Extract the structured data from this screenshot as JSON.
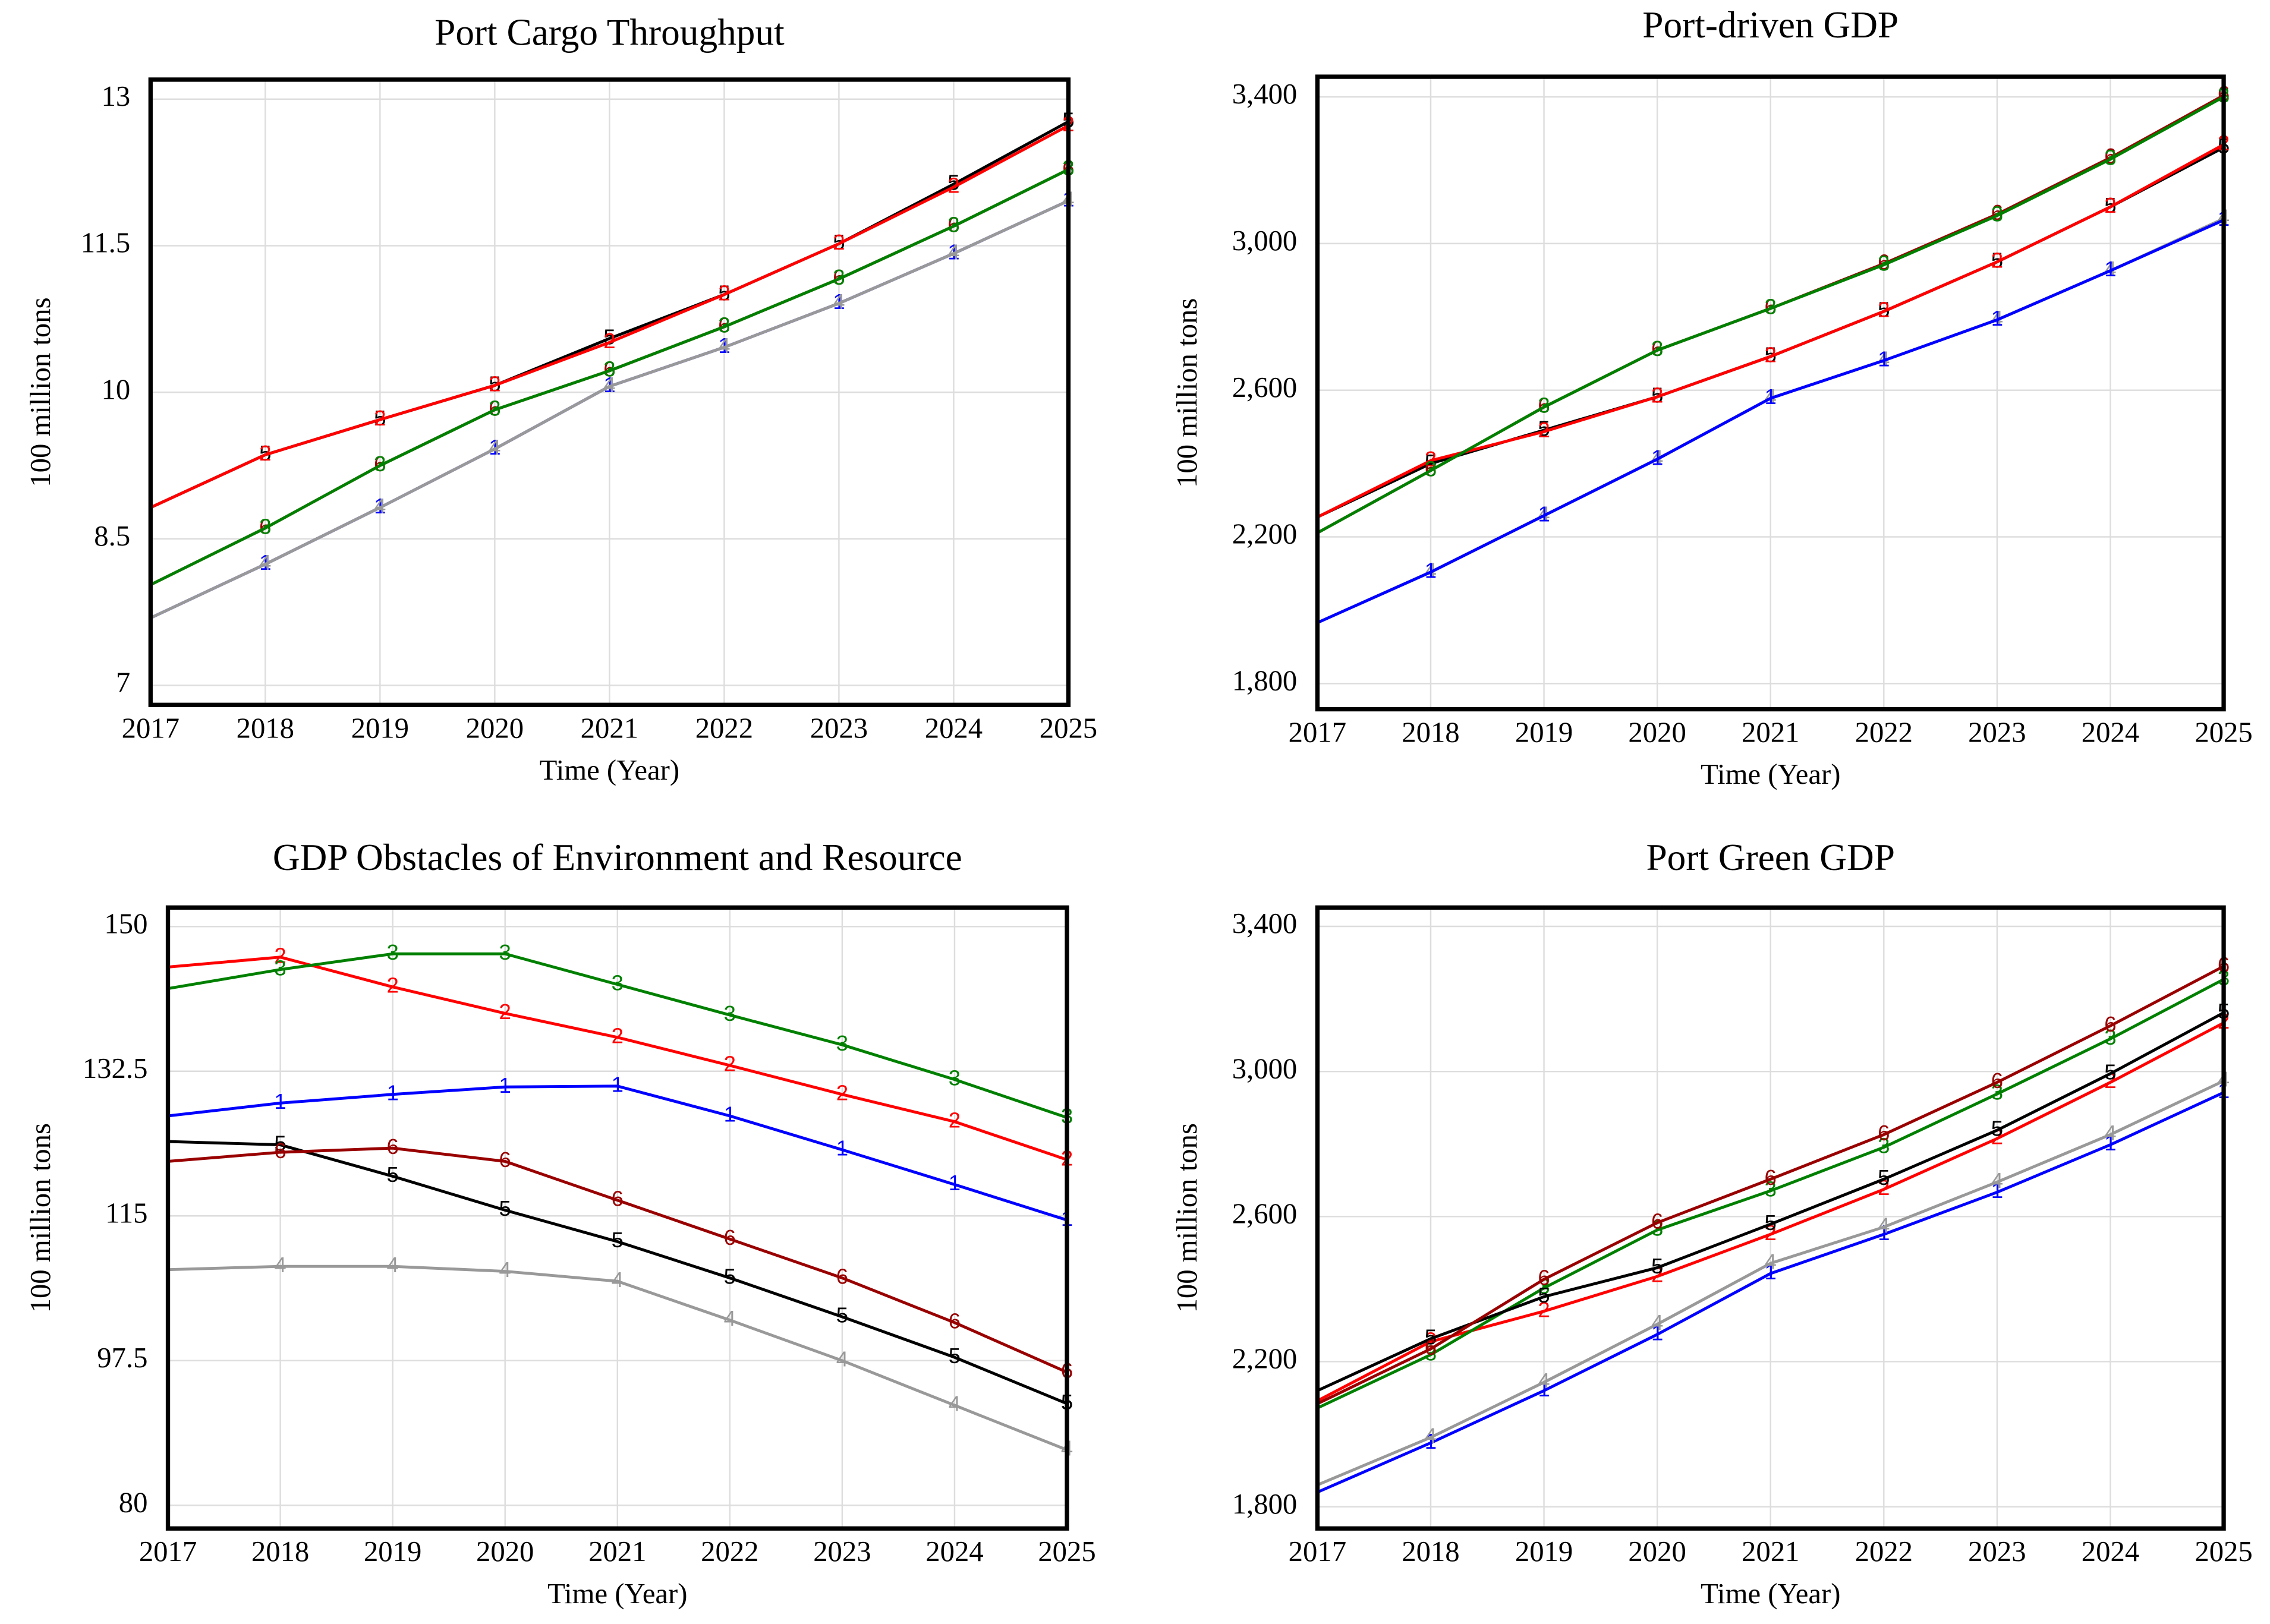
{
  "chart_data": [
    {
      "type": "line",
      "title": "Port Cargo Throughput",
      "xlabel": "Time (Year)",
      "ylabel": "100 million tons",
      "x": [
        2017,
        2018,
        2019,
        2020,
        2021,
        2022,
        2023,
        2024,
        2025
      ],
      "xlim": [
        2017,
        2025
      ],
      "xticks": [
        2017,
        2018,
        2019,
        2020,
        2021,
        2022,
        2023,
        2024,
        2025
      ],
      "ylim": [
        6.8,
        13.2
      ],
      "yticks": [
        7,
        8.5,
        10,
        11.5,
        13
      ],
      "grid": true,
      "series": [
        {
          "name": "1",
          "color": "#0000ff",
          "values": [
            7.69,
            8.24,
            8.82,
            9.42,
            10.06,
            10.46,
            10.91,
            11.42,
            11.96
          ]
        },
        {
          "name": "4",
          "color": "#999999",
          "values": [
            7.69,
            8.24,
            8.82,
            9.42,
            10.06,
            10.46,
            10.91,
            11.42,
            11.96
          ]
        },
        {
          "name": "6",
          "color": "#990000",
          "values": [
            8.03,
            8.61,
            9.25,
            9.82,
            10.22,
            10.67,
            11.16,
            11.7,
            12.28
          ]
        },
        {
          "name": "3",
          "color": "#008000",
          "values": [
            8.03,
            8.61,
            9.25,
            9.82,
            10.22,
            10.67,
            11.16,
            11.7,
            12.28
          ]
        },
        {
          "name": "5",
          "color": "#000000",
          "values": [
            8.82,
            9.36,
            9.72,
            10.07,
            10.55,
            11.0,
            11.52,
            12.13,
            12.77
          ]
        },
        {
          "name": "2",
          "color": "#ff0000",
          "values": [
            8.82,
            9.36,
            9.72,
            10.07,
            10.51,
            11.0,
            11.52,
            12.1,
            12.73
          ]
        }
      ]
    },
    {
      "type": "line",
      "title": "Port-driven GDP",
      "xlabel": "Time (Year)",
      "ylabel": "100 million tons",
      "x": [
        2017,
        2018,
        2019,
        2020,
        2021,
        2022,
        2023,
        2024,
        2025
      ],
      "xlim": [
        2017,
        2025
      ],
      "xticks": [
        2017,
        2018,
        2019,
        2020,
        2021,
        2022,
        2023,
        2024,
        2025
      ],
      "ylim": [
        1730,
        3455
      ],
      "yticks": [
        {
          "value": 1800,
          "label": "1,800"
        },
        {
          "value": 2200,
          "label": "2,200"
        },
        {
          "value": 2600,
          "label": "2,600"
        },
        {
          "value": 3000,
          "label": "3,000"
        },
        {
          "value": 3400,
          "label": "3,400"
        }
      ],
      "grid": true,
      "series": [
        {
          "name": "4",
          "color": "#999999",
          "values": [
            1966,
            2104,
            2258,
            2412,
            2578,
            2681,
            2792,
            2926,
            3068
          ]
        },
        {
          "name": "1",
          "color": "#0000ff",
          "values": [
            1966,
            2104,
            2258,
            2412,
            2578,
            2681,
            2792,
            2926,
            3064
          ]
        },
        {
          "name": "5",
          "color": "#000000",
          "values": [
            2254,
            2400,
            2491,
            2582,
            2692,
            2815,
            2950,
            3100,
            3262
          ]
        },
        {
          "name": "2",
          "color": "#ff0000",
          "values": [
            2254,
            2408,
            2487,
            2582,
            2692,
            2815,
            2950,
            3100,
            3270
          ]
        },
        {
          "name": "6",
          "color": "#990000",
          "values": [
            2211,
            2381,
            2554,
            2709,
            2823,
            2945,
            3080,
            3234,
            3404
          ]
        },
        {
          "name": "3",
          "color": "#008000",
          "values": [
            2211,
            2381,
            2554,
            2709,
            2823,
            2942,
            3076,
            3230,
            3400
          ]
        }
      ]
    },
    {
      "type": "line",
      "title": "GDP Obstacles of Environment and Resource",
      "xlabel": "Time (Year)",
      "ylabel": "100 million tons",
      "x": [
        2017,
        2018,
        2019,
        2020,
        2021,
        2022,
        2023,
        2024,
        2025
      ],
      "xlim": [
        2017,
        2025
      ],
      "xticks": [
        2017,
        2018,
        2019,
        2020,
        2021,
        2022,
        2023,
        2024,
        2025
      ],
      "ylim": [
        77.2,
        152.3
      ],
      "yticks": [
        80,
        97.5,
        115,
        132.5,
        150
      ],
      "grid": true,
      "series": [
        {
          "name": "1",
          "color": "#0000ff",
          "values": [
            127.1,
            128.65,
            129.7,
            130.6,
            130.7,
            127.1,
            123.0,
            118.8,
            114.5
          ]
        },
        {
          "name": "2",
          "color": "#ff0000",
          "values": [
            145.1,
            146.3,
            142.7,
            139.5,
            136.6,
            133.2,
            129.7,
            126.4,
            121.8
          ]
        },
        {
          "name": "3",
          "color": "#008000",
          "values": [
            142.5,
            144.8,
            146.7,
            146.7,
            143.0,
            139.3,
            135.7,
            131.5,
            126.9
          ]
        },
        {
          "name": "4",
          "color": "#999999",
          "values": [
            108.5,
            108.9,
            108.9,
            108.3,
            107.1,
            102.4,
            97.5,
            92.1,
            86.7
          ]
        },
        {
          "name": "5",
          "color": "#000000",
          "values": [
            124.0,
            123.6,
            119.8,
            115.7,
            111.9,
            107.5,
            102.8,
            97.9,
            92.3
          ]
        },
        {
          "name": "6",
          "color": "#990000",
          "values": [
            121.6,
            122.7,
            123.2,
            121.6,
            116.9,
            112.2,
            107.5,
            102.1,
            96.1
          ]
        }
      ]
    },
    {
      "type": "line",
      "title": "Port Green GDP",
      "xlabel": "Time (Year)",
      "ylabel": "100 million tons",
      "x": [
        2017,
        2018,
        2019,
        2020,
        2021,
        2022,
        2023,
        2024,
        2025
      ],
      "xlim": [
        2017,
        2025
      ],
      "xticks": [
        2017,
        2018,
        2019,
        2020,
        2021,
        2022,
        2023,
        2024,
        2025
      ],
      "ylim": [
        1740,
        3452
      ],
      "yticks": [
        {
          "value": 1800,
          "label": "1,800"
        },
        {
          "value": 2200,
          "label": "2,200"
        },
        {
          "value": 2600,
          "label": "2,600"
        },
        {
          "value": 3000,
          "label": "3,000"
        },
        {
          "value": 3400,
          "label": "3,400"
        }
      ],
      "grid": true,
      "series": [
        {
          "name": "1",
          "color": "#0000ff",
          "values": [
            1840,
            1976,
            2120,
            2275,
            2443,
            2551,
            2667,
            2798,
            2942
          ]
        },
        {
          "name": "4",
          "color": "#999999",
          "values": [
            1860,
            1991,
            2143,
            2303,
            2471,
            2571,
            2695,
            2826,
            2974
          ]
        },
        {
          "name": "2",
          "color": "#ff0000",
          "values": [
            2092,
            2255,
            2339,
            2435,
            2551,
            2675,
            2815,
            2970,
            3134
          ]
        },
        {
          "name": "3",
          "color": "#008000",
          "values": [
            2072,
            2219,
            2403,
            2563,
            2671,
            2791,
            2938,
            3090,
            3254
          ]
        },
        {
          "name": "5",
          "color": "#000000",
          "values": [
            2120,
            2263,
            2379,
            2459,
            2579,
            2703,
            2838,
            2994,
            3162
          ]
        },
        {
          "name": "6",
          "color": "#990000",
          "values": [
            2084,
            2235,
            2427,
            2583,
            2703,
            2826,
            2970,
            3126,
            3290
          ]
        }
      ]
    }
  ]
}
